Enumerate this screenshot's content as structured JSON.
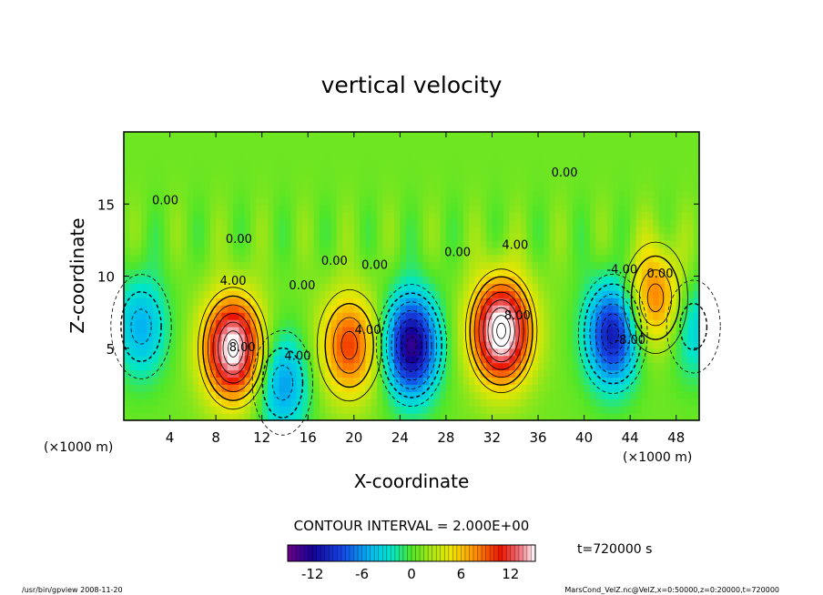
{
  "chart_data": {
    "type": "heatmap",
    "title": "vertical velocity",
    "xlabel": "X-coordinate",
    "ylabel": "Z-coordinate",
    "x_unit_note": "(×1000 m)",
    "z_unit_note": "(×1000 m)",
    "xlim": [
      0,
      50
    ],
    "zlim": [
      0,
      20
    ],
    "x_ticks": [
      4,
      8,
      12,
      16,
      20,
      24,
      28,
      32,
      36,
      40,
      44,
      48
    ],
    "z_ticks": [
      5,
      10,
      15
    ],
    "contour_interval_label": "CONTOUR INTERVAL = 2.000E+00",
    "time_label": "t=720000 s",
    "colorbar": {
      "range": [
        -15,
        15
      ],
      "ticks": [
        -12,
        -6,
        0,
        6,
        12
      ]
    },
    "contour_labels": [
      {
        "text": "4.00",
        "x": 9.5,
        "z": 9.4
      },
      {
        "text": "8.00",
        "x": 10.3,
        "z": 4.8
      },
      {
        "text": "4.00",
        "x": 15.1,
        "z": 4.2
      },
      {
        "text": "0.00",
        "x": 15.5,
        "z": 9.1
      },
      {
        "text": "4.00",
        "x": 21.2,
        "z": 6.0
      },
      {
        "text": "0.00",
        "x": 21.8,
        "z": 10.5
      },
      {
        "text": "0.00",
        "x": 18.3,
        "z": 10.8
      },
      {
        "text": "0.00",
        "x": 29.0,
        "z": 11.4
      },
      {
        "text": "4.00",
        "x": 34.0,
        "z": 11.9
      },
      {
        "text": "8.00",
        "x": 34.2,
        "z": 7.0
      },
      {
        "text": "0.00",
        "x": 38.3,
        "z": 16.9
      },
      {
        "text": "0.00",
        "x": 46.6,
        "z": 9.9
      },
      {
        "text": "-4.00",
        "x": 43.3,
        "z": 10.2
      },
      {
        "text": "-8.00",
        "x": 44.0,
        "z": 5.3
      },
      {
        "text": "0.00",
        "x": 3.6,
        "z": 15.0
      },
      {
        "text": "0.00",
        "x": 10.0,
        "z": 12.3
      }
    ],
    "features": [
      {
        "sign": "up",
        "x": 9.5,
        "z": 5.0,
        "peak": 15
      },
      {
        "sign": "down",
        "x": 13.8,
        "z": 2.6,
        "peak": -7
      },
      {
        "sign": "up",
        "x": 19.6,
        "z": 5.2,
        "peak": 9
      },
      {
        "sign": "down",
        "x": 25.0,
        "z": 5.2,
        "peak": -14
      },
      {
        "sign": "up",
        "x": 32.8,
        "z": 6.2,
        "peak": 16
      },
      {
        "sign": "down",
        "x": 42.5,
        "z": 6.0,
        "peak": -12
      },
      {
        "sign": "up",
        "x": 46.2,
        "z": 8.5,
        "peak": 8
      },
      {
        "sign": "down",
        "x": 1.5,
        "z": 6.5,
        "peak": -6
      },
      {
        "sign": "down",
        "x": 49.5,
        "z": 6.5,
        "peak": -5
      }
    ]
  },
  "footer": {
    "left": "/usr/bin/gpview   2008-11-20",
    "right": "MarsCond_VelZ.nc@VelZ,x=0:50000,z=0:20000,t=720000"
  }
}
